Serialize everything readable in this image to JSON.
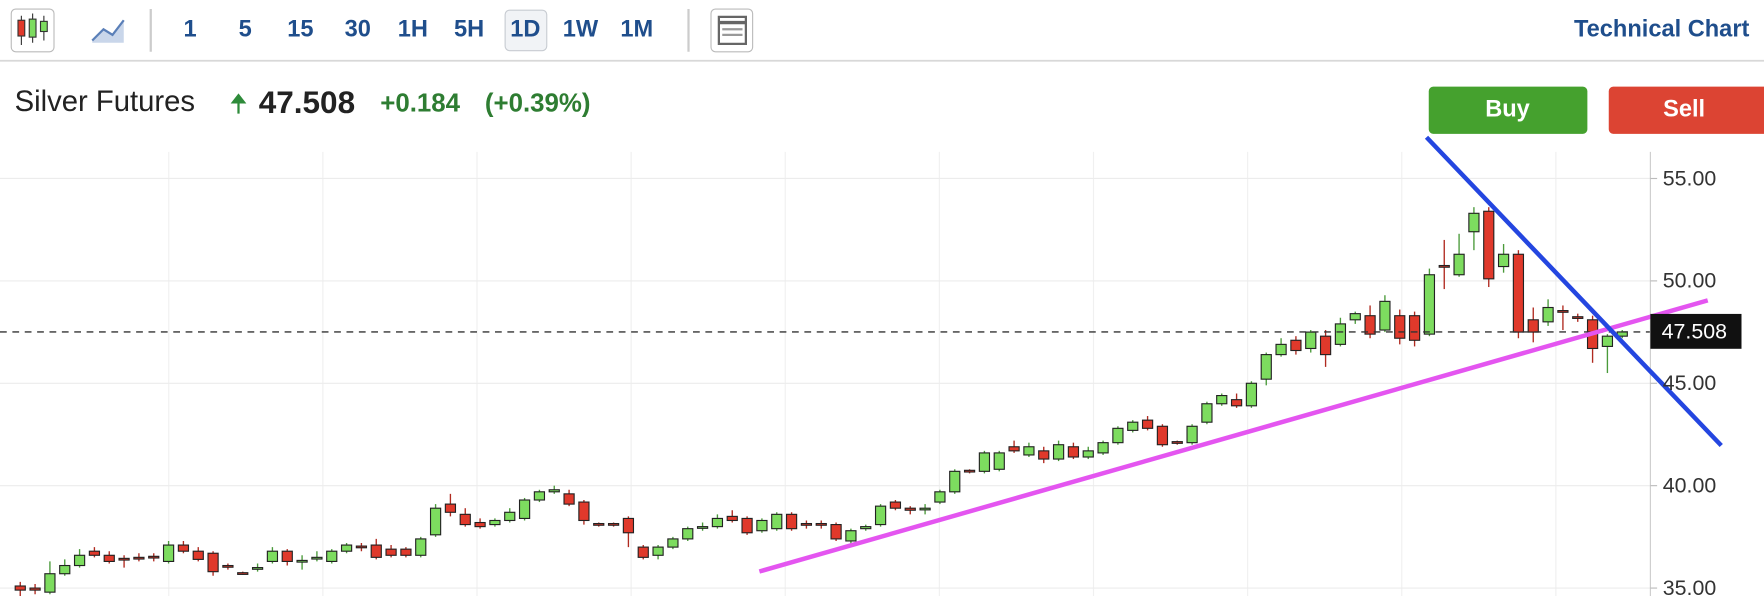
{
  "toolbar": {
    "intervals": [
      "1",
      "5",
      "15",
      "30",
      "1H",
      "5H",
      "1D",
      "1W",
      "1M"
    ],
    "link": "Technical Chart"
  },
  "quote": {
    "change": "+0.184",
    "change_percent": "(+0.39%)"
  },
  "buttons": {
    "buy": "Buy",
    "sell": "Sell"
  },
  "chart_data": {
    "type": "candlestick",
    "title": "Silver Futures",
    "last_price": 47.508,
    "up_color": "#7ddc5f",
    "down_color": "#e0392b",
    "ylim": [
      34.6,
      56.3
    ],
    "yticks": [
      {
        "value": 35,
        "label": "35.00"
      },
      {
        "value": 40,
        "label": "40.00"
      },
      {
        "value": 45,
        "label": "45.00"
      },
      {
        "value": 50,
        "label": "50.00"
      },
      {
        "value": 55,
        "label": "55.00"
      }
    ],
    "grid": true,
    "candles": [
      [
        35.1,
        35.3,
        34.6,
        34.9
      ],
      [
        35.0,
        35.2,
        34.7,
        34.9
      ],
      [
        34.8,
        36.3,
        34.7,
        35.7
      ],
      [
        35.7,
        36.4,
        35.6,
        36.1
      ],
      [
        36.1,
        36.9,
        36.0,
        36.6
      ],
      [
        36.8,
        37.0,
        36.5,
        36.6
      ],
      [
        36.6,
        36.8,
        36.2,
        36.3
      ],
      [
        36.45,
        36.6,
        36.0,
        36.4
      ],
      [
        36.5,
        36.7,
        36.3,
        36.45
      ],
      [
        36.55,
        36.7,
        36.3,
        36.5
      ],
      [
        36.3,
        37.3,
        36.2,
        37.1
      ],
      [
        37.1,
        37.3,
        36.7,
        36.8
      ],
      [
        36.8,
        37.0,
        36.3,
        36.4
      ],
      [
        36.7,
        36.8,
        35.6,
        35.8
      ],
      [
        36.1,
        36.2,
        35.9,
        36.05
      ],
      [
        35.75,
        35.8,
        35.65,
        35.7
      ],
      [
        35.95,
        36.2,
        35.8,
        36.0
      ],
      [
        36.3,
        37.0,
        36.2,
        36.8
      ],
      [
        36.8,
        36.9,
        36.1,
        36.3
      ],
      [
        36.3,
        36.6,
        35.9,
        36.35
      ],
      [
        36.45,
        36.8,
        36.3,
        36.5
      ],
      [
        36.3,
        36.9,
        36.2,
        36.8
      ],
      [
        36.8,
        37.2,
        36.7,
        37.1
      ],
      [
        37.05,
        37.2,
        36.8,
        37.0
      ],
      [
        37.1,
        37.4,
        36.4,
        36.5
      ],
      [
        36.9,
        37.1,
        36.5,
        36.6
      ],
      [
        36.9,
        37.0,
        36.5,
        36.6
      ],
      [
        36.6,
        37.5,
        36.5,
        37.4
      ],
      [
        37.6,
        39.1,
        37.5,
        38.9
      ],
      [
        39.1,
        39.6,
        38.5,
        38.7
      ],
      [
        38.6,
        38.9,
        38.0,
        38.1
      ],
      [
        38.2,
        38.4,
        37.9,
        38.0
      ],
      [
        38.1,
        38.4,
        38.0,
        38.3
      ],
      [
        38.3,
        38.9,
        38.2,
        38.7
      ],
      [
        38.4,
        39.4,
        38.3,
        39.3
      ],
      [
        39.3,
        39.8,
        39.2,
        39.7
      ],
      [
        39.7,
        40.0,
        39.6,
        39.8
      ],
      [
        39.6,
        39.8,
        39.0,
        39.1
      ],
      [
        39.2,
        39.3,
        38.1,
        38.3
      ],
      [
        38.15,
        38.2,
        38.0,
        38.1
      ],
      [
        38.15,
        38.2,
        38.0,
        38.1
      ],
      [
        38.4,
        38.5,
        37.0,
        37.7
      ],
      [
        37.0,
        37.1,
        36.4,
        36.5
      ],
      [
        36.6,
        37.1,
        36.4,
        37.0
      ],
      [
        37.0,
        37.5,
        36.9,
        37.4
      ],
      [
        37.4,
        38.0,
        37.3,
        37.9
      ],
      [
        37.95,
        38.2,
        37.8,
        38.0
      ],
      [
        38.0,
        38.6,
        37.9,
        38.4
      ],
      [
        38.5,
        38.8,
        38.2,
        38.3
      ],
      [
        38.4,
        38.5,
        37.6,
        37.7
      ],
      [
        37.8,
        38.4,
        37.7,
        38.3
      ],
      [
        37.9,
        38.7,
        37.8,
        38.6
      ],
      [
        38.6,
        38.7,
        37.8,
        37.9
      ],
      [
        38.15,
        38.3,
        37.9,
        38.1
      ],
      [
        38.15,
        38.3,
        37.9,
        38.1
      ],
      [
        38.1,
        38.2,
        37.3,
        37.4
      ],
      [
        37.3,
        37.9,
        37.1,
        37.8
      ],
      [
        37.9,
        38.1,
        37.8,
        38.0
      ],
      [
        38.1,
        39.1,
        38.0,
        39.0
      ],
      [
        39.2,
        39.3,
        38.8,
        38.9
      ],
      [
        38.9,
        39.0,
        38.6,
        38.8
      ],
      [
        38.85,
        39.1,
        38.6,
        38.9
      ],
      [
        39.2,
        39.8,
        39.1,
        39.7
      ],
      [
        39.7,
        40.8,
        39.6,
        40.7
      ],
      [
        40.75,
        40.8,
        40.6,
        40.7
      ],
      [
        40.7,
        41.7,
        40.6,
        41.6
      ],
      [
        40.8,
        41.7,
        40.7,
        41.6
      ],
      [
        41.9,
        42.2,
        41.6,
        41.7
      ],
      [
        41.5,
        42.1,
        41.4,
        41.9
      ],
      [
        41.7,
        41.9,
        41.1,
        41.3
      ],
      [
        41.3,
        42.2,
        41.2,
        42.0
      ],
      [
        41.9,
        42.1,
        41.3,
        41.4
      ],
      [
        41.4,
        41.9,
        41.3,
        41.7
      ],
      [
        41.6,
        42.2,
        41.5,
        42.1
      ],
      [
        42.1,
        42.9,
        42.0,
        42.8
      ],
      [
        42.7,
        43.2,
        42.6,
        43.1
      ],
      [
        43.2,
        43.4,
        42.7,
        42.8
      ],
      [
        42.9,
        43.0,
        41.9,
        42.0
      ],
      [
        42.15,
        42.2,
        42.0,
        42.1
      ],
      [
        42.1,
        43.0,
        42.0,
        42.9
      ],
      [
        43.1,
        44.1,
        43.0,
        44.0
      ],
      [
        44.0,
        44.5,
        43.9,
        44.4
      ],
      [
        44.2,
        44.5,
        43.8,
        43.9
      ],
      [
        43.9,
        45.1,
        43.8,
        45.0
      ],
      [
        45.2,
        46.5,
        44.9,
        46.4
      ],
      [
        46.4,
        47.2,
        46.3,
        46.9
      ],
      [
        47.1,
        47.3,
        46.4,
        46.6
      ],
      [
        46.7,
        47.6,
        46.5,
        47.5
      ],
      [
        47.3,
        47.6,
        45.8,
        46.4
      ],
      [
        46.9,
        48.2,
        46.8,
        47.9
      ],
      [
        48.1,
        48.5,
        47.9,
        48.4
      ],
      [
        48.3,
        48.8,
        47.2,
        47.4
      ],
      [
        47.6,
        49.3,
        47.5,
        49.0
      ],
      [
        48.3,
        48.6,
        46.9,
        47.2
      ],
      [
        48.3,
        48.5,
        46.8,
        47.1
      ],
      [
        47.4,
        50.6,
        47.3,
        50.3
      ],
      [
        50.75,
        52.0,
        49.6,
        50.7
      ],
      [
        50.3,
        52.3,
        50.2,
        51.3
      ],
      [
        52.4,
        53.6,
        51.5,
        53.3
      ],
      [
        53.4,
        53.6,
        49.7,
        50.1
      ],
      [
        50.7,
        51.8,
        50.4,
        51.3
      ],
      [
        51.3,
        51.5,
        47.2,
        47.5
      ],
      [
        48.1,
        48.7,
        47.0,
        47.5
      ],
      [
        48.0,
        49.1,
        47.8,
        48.7
      ],
      [
        48.55,
        48.8,
        47.6,
        48.5
      ],
      [
        48.25,
        48.4,
        48.0,
        48.2
      ],
      [
        48.1,
        48.3,
        46.0,
        46.7
      ],
      [
        46.8,
        47.4,
        45.5,
        47.3
      ],
      [
        47.3,
        47.6,
        47.2,
        47.508
      ]
    ]
  }
}
